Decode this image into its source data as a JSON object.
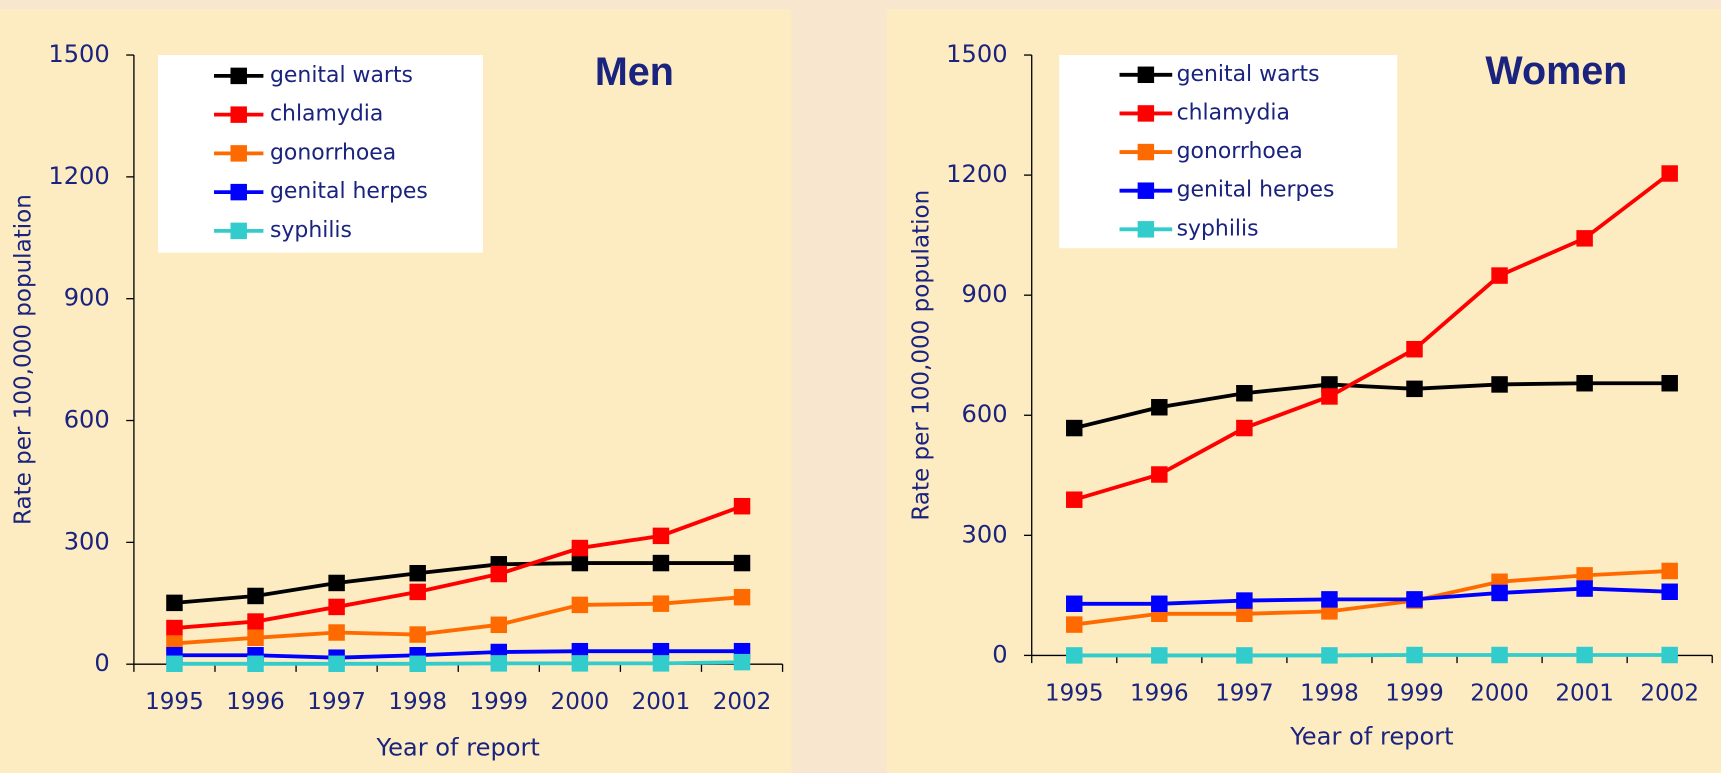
{
  "chart_data": [
    {
      "type": "line",
      "title": "Men",
      "x_label": "Year of report",
      "y_label": "Rate per 100,000 population",
      "categories": [
        "1995",
        "1996",
        "1997",
        "1998",
        "1999",
        "2000",
        "2001",
        "2002"
      ],
      "ylim": [
        0,
        1500
      ],
      "yticks": [
        0,
        300,
        600,
        900,
        1200,
        1500
      ],
      "legend": "upper left",
      "series": [
        {
          "name": "genital warts",
          "color": "#000000",
          "values": [
            151,
            168,
            200,
            224,
            246,
            249,
            249,
            249
          ]
        },
        {
          "name": "chlamydia",
          "color": "#ff0000",
          "values": [
            89,
            105,
            141,
            178,
            222,
            286,
            316,
            389
          ]
        },
        {
          "name": "gonorrhoea",
          "color": "#ff6a00",
          "values": [
            51,
            65,
            78,
            73,
            97,
            146,
            149,
            165
          ]
        },
        {
          "name": "genital herpes",
          "color": "#0000ff",
          "values": [
            22,
            22,
            16,
            22,
            30,
            32,
            32,
            32
          ]
        },
        {
          "name": "syphilis",
          "color": "#33cccc",
          "values": [
            1,
            1,
            1,
            1,
            2,
            2,
            2,
            5
          ]
        }
      ]
    },
    {
      "type": "line",
      "title": "Women",
      "x_label": "Year of report",
      "y_label": "Rate per 100,000 population",
      "categories": [
        "1995",
        "1996",
        "1997",
        "1998",
        "1999",
        "2000",
        "2001",
        "2002"
      ],
      "ylim": [
        0,
        1500
      ],
      "yticks": [
        0,
        300,
        600,
        900,
        1200,
        1500
      ],
      "legend": "upper left",
      "series": [
        {
          "name": "genital warts",
          "color": "#000000",
          "values": [
            568,
            620,
            655,
            677,
            666,
            677,
            680,
            680
          ]
        },
        {
          "name": "chlamydia",
          "color": "#ff0000",
          "values": [
            389,
            452,
            568,
            647,
            765,
            949,
            1042,
            1204
          ]
        },
        {
          "name": "gonorrhoea",
          "color": "#ff6a00",
          "values": [
            77,
            104,
            104,
            110,
            137,
            184,
            200,
            211
          ]
        },
        {
          "name": "genital herpes",
          "color": "#0000ff",
          "values": [
            129,
            129,
            137,
            140,
            140,
            156,
            167,
            159
          ]
        },
        {
          "name": "syphilis",
          "color": "#33cccc",
          "values": [
            0,
            0,
            0,
            0,
            1,
            1,
            1,
            1
          ]
        }
      ]
    }
  ]
}
